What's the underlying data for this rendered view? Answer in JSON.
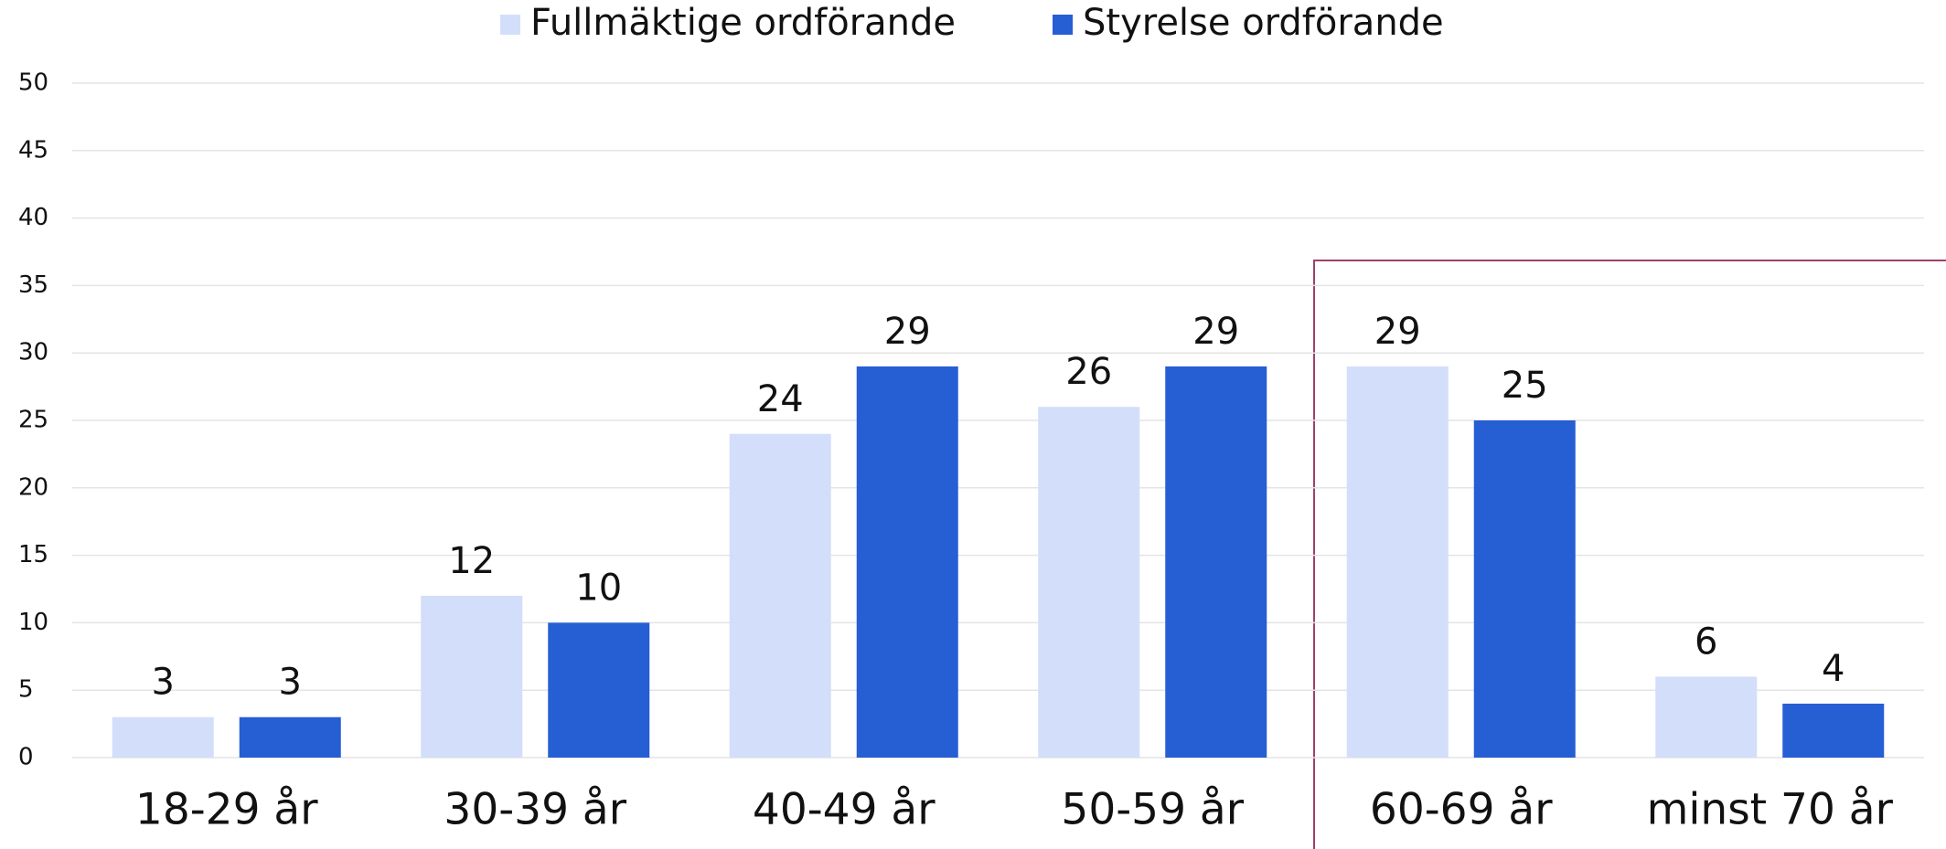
{
  "chart_data": {
    "type": "bar",
    "categories": [
      "18-29 år",
      "30-39 år",
      "40-49 år",
      "50-59 år",
      "60-69 år",
      "minst 70 år"
    ],
    "series": [
      {
        "name": "Fullmäktige ordförande",
        "color": "#d3defa",
        "values": [
          3,
          12,
          24,
          26,
          29,
          6
        ]
      },
      {
        "name": "Styrelse ordförande",
        "color": "#265ed4",
        "values": [
          3,
          10,
          29,
          29,
          25,
          4
        ]
      }
    ],
    "ylim": [
      0,
      50
    ],
    "yticks": [
      0,
      5,
      10,
      15,
      20,
      25,
      30,
      35,
      40,
      45,
      50
    ],
    "grid": true,
    "legend": "top"
  }
}
